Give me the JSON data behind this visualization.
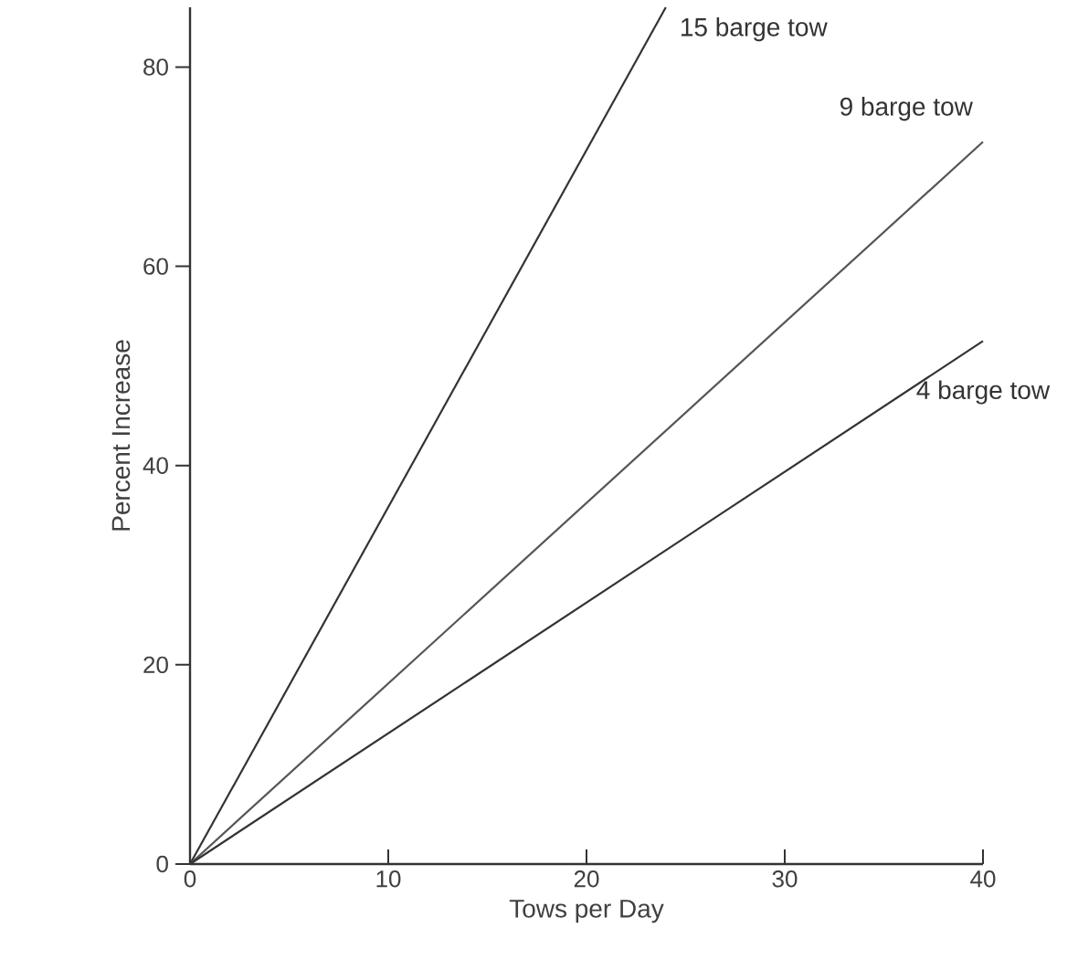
{
  "chart_data": {
    "type": "line",
    "xlabel": "Tows  per Day",
    "ylabel": "Percent Increase",
    "series": [
      {
        "name": "15 barge tow",
        "color": "#333333",
        "x": [
          0,
          24
        ],
        "values": [
          0,
          86
        ]
      },
      {
        "name": "9 barge tow",
        "color": "#555555",
        "x": [
          0,
          40
        ],
        "values": [
          0,
          72.5
        ]
      },
      {
        "name": "4 barge tow",
        "color": "#333333",
        "x": [
          0,
          40
        ],
        "values": [
          0,
          52.5
        ]
      }
    ],
    "xlim": [
      0,
      40
    ],
    "ylim": [
      0,
      86
    ],
    "xticks": [
      0,
      10,
      20,
      30,
      40
    ],
    "yticks": [
      0,
      20,
      40,
      60,
      80
    ],
    "grid": false,
    "legend": false,
    "marker": "none",
    "line_style": "solid"
  }
}
